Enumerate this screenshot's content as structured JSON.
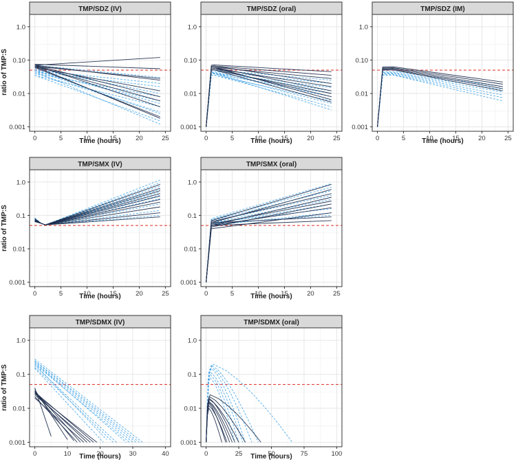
{
  "chart_data": {
    "type": "line",
    "y_axis_label": "ratio of TMP:S",
    "x_axis_label": "Time (hours)",
    "y_scale": "log10",
    "ylim": [
      0.001,
      2.0
    ],
    "y_ticks": [
      0.001,
      0.01,
      0.1,
      1.0
    ],
    "y_tick_labels_row1": [
      "0.001",
      "0.01",
      "0.10",
      "1.0"
    ],
    "y_tick_labels_other": [
      "0.001",
      "0.01",
      "0.1",
      "1.0"
    ],
    "threshold": {
      "value": 0.05,
      "color": "#e0413a",
      "style": "dashed"
    },
    "series_colors": {
      "dark": "#1c2c4c",
      "light": "#4aa8e8"
    },
    "panels": [
      {
        "title": "TMP/SDZ (IV)",
        "xlim": [
          0,
          25
        ],
        "x_ticks": [
          0,
          5,
          10,
          15,
          20,
          25
        ],
        "show_y_label": true,
        "tick_style": "row1",
        "route": "iv",
        "series_dark": [
          [
            0.07,
            0.12
          ],
          [
            0.075,
            0.055
          ],
          [
            0.065,
            0.028
          ],
          [
            0.07,
            0.025
          ],
          [
            0.06,
            0.012
          ],
          [
            0.07,
            0.008
          ],
          [
            0.065,
            0.006
          ],
          [
            0.07,
            0.004
          ],
          [
            0.06,
            0.002
          ],
          [
            0.065,
            0.0018
          ]
        ],
        "series_light": [
          [
            0.07,
            0.03
          ],
          [
            0.05,
            0.02
          ],
          [
            0.045,
            0.016
          ],
          [
            0.055,
            0.01
          ],
          [
            0.04,
            0.008
          ],
          [
            0.045,
            0.006
          ],
          [
            0.05,
            0.005
          ],
          [
            0.035,
            0.004
          ],
          [
            0.04,
            0.0028
          ],
          [
            0.05,
            0.0025
          ],
          [
            0.035,
            0.0015
          ],
          [
            0.045,
            0.0012
          ]
        ]
      },
      {
        "title": "TMP/SDZ (oral)",
        "xlim": [
          0,
          25
        ],
        "x_ticks": [
          0,
          5,
          10,
          15,
          20,
          25
        ],
        "show_y_label": false,
        "tick_style": "row1",
        "route": "oral",
        "series_dark": [
          [
            0.07,
            0.045
          ],
          [
            0.065,
            0.035
          ],
          [
            0.06,
            0.028
          ],
          [
            0.065,
            0.02
          ],
          [
            0.055,
            0.016
          ],
          [
            0.06,
            0.012
          ],
          [
            0.05,
            0.01
          ],
          [
            0.055,
            0.008
          ],
          [
            0.06,
            0.0065
          ],
          [
            0.05,
            0.0055
          ]
        ],
        "series_light": [
          [
            0.05,
            0.025
          ],
          [
            0.045,
            0.02
          ],
          [
            0.04,
            0.015
          ],
          [
            0.042,
            0.012
          ],
          [
            0.038,
            0.01
          ],
          [
            0.04,
            0.008
          ],
          [
            0.035,
            0.006
          ],
          [
            0.038,
            0.005
          ],
          [
            0.035,
            0.004
          ],
          [
            0.04,
            0.0032
          ]
        ]
      },
      {
        "title": "TMP/SDZ (IM)",
        "xlim": [
          0,
          25
        ],
        "x_ticks": [
          0,
          5,
          10,
          15,
          20,
          25
        ],
        "show_y_label": false,
        "tick_style": "row1",
        "route": "im",
        "series_dark": [
          [
            0.062,
            0.022
          ],
          [
            0.058,
            0.019
          ],
          [
            0.055,
            0.016
          ],
          [
            0.052,
            0.014
          ],
          [
            0.05,
            0.012
          ]
        ],
        "series_light": [
          [
            0.045,
            0.016
          ],
          [
            0.042,
            0.013
          ],
          [
            0.04,
            0.011
          ],
          [
            0.038,
            0.009
          ],
          [
            0.036,
            0.0075
          ],
          [
            0.035,
            0.006
          ]
        ]
      },
      {
        "title": "TMP/SMX (IV)",
        "xlim": [
          0,
          25
        ],
        "x_ticks": [
          0,
          5,
          10,
          15,
          20,
          25
        ],
        "show_y_label": true,
        "tick_style": "other",
        "route": "smx_iv",
        "series_dark": [
          [
            0.08,
            0.85
          ],
          [
            0.075,
            0.65
          ],
          [
            0.07,
            0.55
          ],
          [
            0.072,
            0.45
          ],
          [
            0.068,
            0.38
          ],
          [
            0.065,
            0.3
          ],
          [
            0.07,
            0.25
          ],
          [
            0.065,
            0.18
          ],
          [
            0.07,
            0.12
          ],
          [
            0.072,
            0.09
          ]
        ],
        "series_light": [
          [
            0.085,
            1.15
          ],
          [
            0.08,
            0.95
          ],
          [
            0.078,
            0.75
          ],
          [
            0.075,
            0.6
          ],
          [
            0.072,
            0.5
          ],
          [
            0.07,
            0.4
          ],
          [
            0.068,
            0.32
          ],
          [
            0.07,
            0.22
          ],
          [
            0.072,
            0.14
          ],
          [
            0.075,
            0.1
          ]
        ]
      },
      {
        "title": "TMP/SMX (oral)",
        "xlim": [
          0,
          25
        ],
        "x_ticks": [
          0,
          5,
          10,
          15,
          20,
          25
        ],
        "show_y_label": false,
        "tick_style": "other",
        "route": "smx_oral",
        "series_dark": [
          [
            0.07,
            0.85
          ],
          [
            0.06,
            0.6
          ],
          [
            0.065,
            0.45
          ],
          [
            0.05,
            0.35
          ],
          [
            0.055,
            0.27
          ],
          [
            0.045,
            0.22
          ],
          [
            0.05,
            0.17
          ],
          [
            0.04,
            0.12
          ],
          [
            0.06,
            0.09
          ],
          [
            0.05,
            0.07
          ]
        ],
        "series_light": [
          [
            0.08,
            0.9
          ],
          [
            0.075,
            0.7
          ],
          [
            0.07,
            0.55
          ],
          [
            0.065,
            0.4
          ],
          [
            0.06,
            0.3
          ],
          [
            0.055,
            0.22
          ],
          [
            0.06,
            0.16
          ],
          [
            0.05,
            0.12
          ],
          [
            0.055,
            0.1
          ]
        ]
      },
      {
        "title": "TMP/SDMX (IV)",
        "xlim": [
          0,
          40
        ],
        "x_ticks": [
          0,
          10,
          20,
          30,
          40
        ],
        "show_y_label": true,
        "tick_style": "other",
        "route": "sdmx_iv",
        "series_dark": [
          [
            0.04,
            5,
            0.0015
          ],
          [
            0.035,
            10,
            0.0012
          ],
          [
            0.03,
            12,
            0.0011
          ],
          [
            0.032,
            14,
            0.001
          ],
          [
            0.028,
            16,
            0.001
          ],
          [
            0.025,
            17,
            0.001
          ],
          [
            0.03,
            18,
            0.001
          ],
          [
            0.027,
            19,
            0.001
          ],
          [
            0.02,
            15,
            0.001
          ],
          [
            0.022,
            13,
            0.001
          ]
        ],
        "series_light": [
          [
            0.28,
            33,
            0.001
          ],
          [
            0.25,
            32,
            0.001
          ],
          [
            0.24,
            31,
            0.001
          ],
          [
            0.22,
            30,
            0.001
          ],
          [
            0.2,
            29,
            0.001
          ],
          [
            0.22,
            28,
            0.001
          ],
          [
            0.18,
            25,
            0.001
          ],
          [
            0.16,
            24,
            0.001
          ],
          [
            0.2,
            22,
            0.0012
          ],
          [
            0.15,
            21,
            0.001
          ]
        ]
      },
      {
        "title": "TMP/SDMX (oral)",
        "xlim": [
          0,
          100
        ],
        "x_ticks": [
          0,
          25,
          50,
          75,
          100
        ],
        "show_y_label": false,
        "tick_style": "other",
        "route": "sdmx_oral",
        "series_dark": [
          [
            0.025,
            3,
            42,
            0.001
          ],
          [
            0.022,
            2.5,
            30,
            0.001
          ],
          [
            0.018,
            2.5,
            25,
            0.001
          ],
          [
            0.02,
            2,
            22,
            0.001
          ],
          [
            0.016,
            2,
            20,
            0.001
          ],
          [
            0.015,
            2,
            18,
            0.001
          ],
          [
            0.012,
            2,
            16,
            0.001
          ],
          [
            0.014,
            2,
            15,
            0.001
          ],
          [
            0.01,
            2,
            12,
            0.001
          ]
        ],
        "series_light": [
          [
            0.2,
            5,
            66,
            0.001
          ],
          [
            0.19,
            4,
            40,
            0.001
          ],
          [
            0.17,
            4,
            35,
            0.001
          ],
          [
            0.15,
            4,
            30,
            0.001
          ],
          [
            0.12,
            3,
            28,
            0.001
          ],
          [
            0.1,
            3,
            25,
            0.001
          ],
          [
            0.08,
            3,
            22,
            0.001
          ]
        ]
      }
    ]
  }
}
